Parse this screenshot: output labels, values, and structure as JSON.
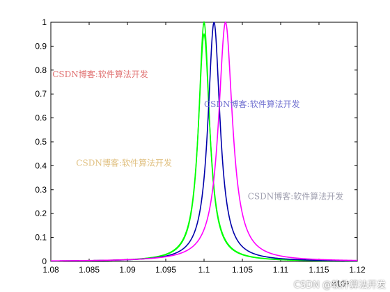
{
  "chart_data": {
    "type": "line",
    "title": "",
    "xlabel": "",
    "ylabel": "",
    "xlim": [
      1.08,
      1.12
    ],
    "ylim": [
      0,
      1
    ],
    "x_ticks": [
      "1.08",
      "1.085",
      "1.09",
      "1.095",
      "1.1",
      "1.105",
      "1.11",
      "1.115",
      "1.12"
    ],
    "y_ticks": [
      "0",
      "0.1",
      "0.2",
      "0.3",
      "0.4",
      "0.5",
      "0.6",
      "0.7",
      "0.8",
      "0.9",
      "1"
    ],
    "x_exponent": "×10⁵",
    "grid": false,
    "series": [
      {
        "color": "#00ff00",
        "center": 1.1,
        "peak": 1.0,
        "half_width": 0.00085
      },
      {
        "color": "#00ff00",
        "center": 1.1,
        "peak": 0.95,
        "half_width": 0.0009
      },
      {
        "color": "#0000aa",
        "center": 1.1013,
        "peak": 1.0,
        "half_width": 0.00095
      },
      {
        "color": "#ff00ff",
        "center": 1.1028,
        "peak": 1.0,
        "half_width": 0.0011
      }
    ],
    "annotations": [
      {
        "text": "CSDN博客:软件算法开发",
        "color": "#e07070",
        "x": 1.0802,
        "y": 0.77
      },
      {
        "text": "CSDN博客:软件算法开发",
        "color": "#7070d0",
        "x": 1.1,
        "y": 0.645
      },
      {
        "text": "CSDN博客:软件算法开发",
        "color": "#e0c080",
        "x": 1.0833,
        "y": 0.4
      },
      {
        "text": "CSDN博客:软件算法开发",
        "color": "#a0a0b0",
        "x": 1.1057,
        "y": 0.26
      }
    ]
  },
  "credit": "CSDN @软件算法开发"
}
